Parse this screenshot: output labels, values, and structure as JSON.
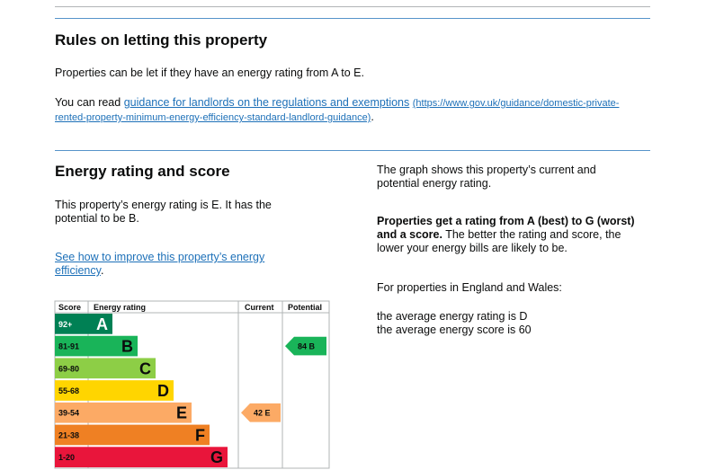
{
  "rules": {
    "heading": "Rules on letting this property",
    "intro": "Properties can be let if they have an energy rating from A to E.",
    "link_prefix": "You can read ",
    "link_text": "guidance for landlords on the regulations and exemptions",
    "link_url": "(https://www.gov.uk/guidance/domestic-private-rented-property-minimum-energy-efficiency-standard-landlord-guidance)",
    "link_suffix": "."
  },
  "rating": {
    "heading": "Energy rating and score",
    "summary": "This property’s energy rating is E. It has the potential to be B.",
    "improve_link": "See how to improve this property’s energy efficiency",
    "improve_suffix": "."
  },
  "graph": {
    "headers": {
      "score": "Score",
      "rating": "Energy rating",
      "current": "Current",
      "potential": "Potential"
    },
    "bands": [
      {
        "score": "92+",
        "letter": "A",
        "color": "#008054"
      },
      {
        "score": "81-91",
        "letter": "B",
        "color": "#19b459"
      },
      {
        "score": "69-80",
        "letter": "C",
        "color": "#8dce46"
      },
      {
        "score": "55-68",
        "letter": "D",
        "color": "#ffd500"
      },
      {
        "score": "39-54",
        "letter": "E",
        "color": "#fcaa65"
      },
      {
        "score": "21-38",
        "letter": "F",
        "color": "#ef8023"
      },
      {
        "score": "1-20",
        "letter": "G",
        "color": "#e9153b"
      }
    ],
    "current": {
      "score": 42,
      "letter": "E"
    },
    "potential": {
      "score": 84,
      "letter": "B"
    }
  },
  "explanation": {
    "intro": "The graph shows this property’s current and potential energy rating.",
    "bold": "Properties get a rating from A (best) to G (worst) and a score.",
    "rest": " The better the rating and score, the lower your energy bills are likely to be.",
    "region": "For properties in England and Wales:",
    "average_rating": "the average energy rating is D",
    "average_score": "the average energy score is 60"
  }
}
